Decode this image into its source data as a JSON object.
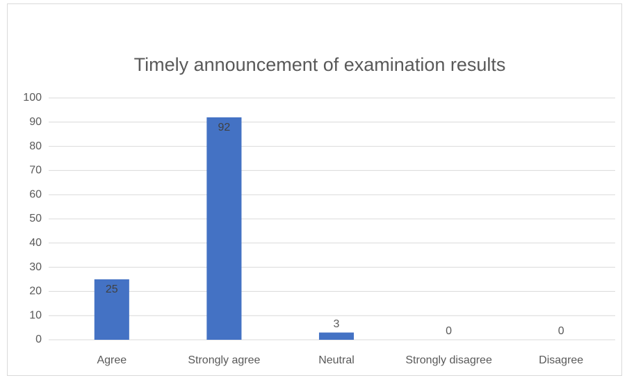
{
  "chart_data": {
    "type": "bar",
    "title": "Timely announcement of examination results",
    "categories": [
      "Agree",
      "Strongly agree",
      "Neutral",
      "Strongly disagree",
      "Disagree"
    ],
    "values": [
      25,
      92,
      3,
      0,
      0
    ],
    "color": "#4472c4",
    "ylim": [
      0,
      100
    ],
    "yticks": [
      0,
      10,
      20,
      30,
      40,
      50,
      60,
      70,
      80,
      90,
      100
    ],
    "grid": true
  }
}
